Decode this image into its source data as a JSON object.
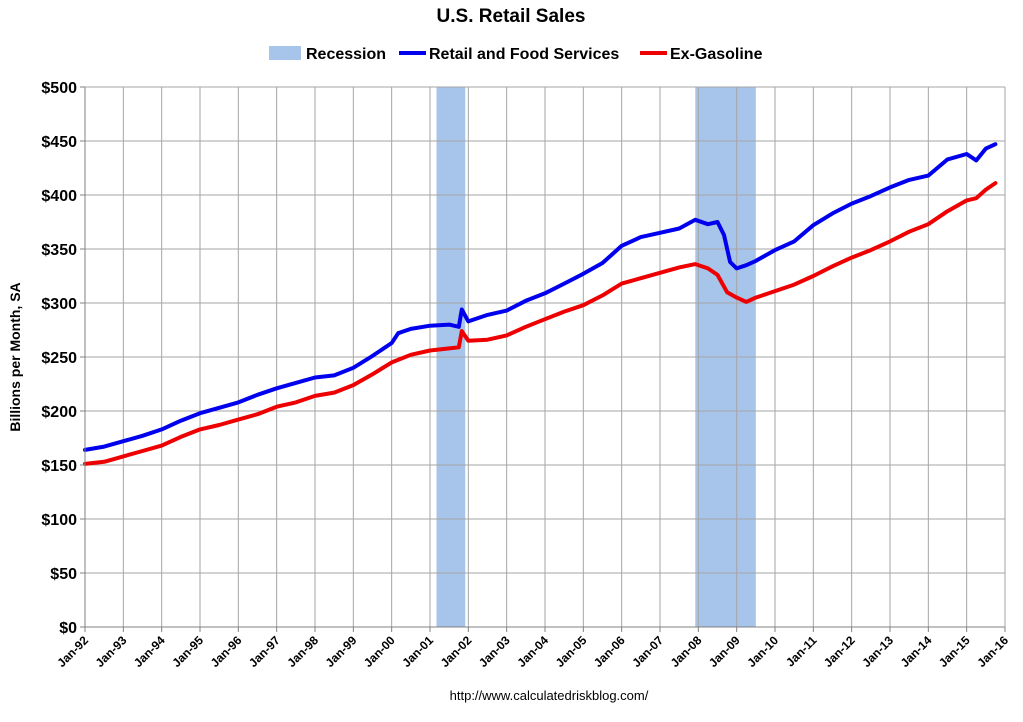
{
  "chart_data": {
    "type": "line",
    "title": "U.S. Retail Sales",
    "ylabel": "Billions per Month, SA",
    "xlabel": "",
    "source": "http://www.calculatedriskblog.com/",
    "ylim": [
      0,
      500
    ],
    "xlim": [
      1992.0,
      2016.0
    ],
    "y_ticks": [
      0,
      50,
      100,
      150,
      200,
      250,
      300,
      350,
      400,
      450,
      500
    ],
    "y_tick_labels": [
      "$0",
      "$50",
      "$100",
      "$150",
      "$200",
      "$250",
      "$300",
      "$350",
      "$400",
      "$450",
      "$500"
    ],
    "x_ticks": [
      1992,
      1993,
      1994,
      1995,
      1996,
      1997,
      1998,
      1999,
      2000,
      2001,
      2002,
      2003,
      2004,
      2005,
      2006,
      2007,
      2008,
      2009,
      2010,
      2011,
      2012,
      2013,
      2014,
      2015,
      2016
    ],
    "x_tick_labels": [
      "Jan-92",
      "Jan-93",
      "Jan-94",
      "Jan-95",
      "Jan-96",
      "Jan-97",
      "Jan-98",
      "Jan-99",
      "Jan-00",
      "Jan-01",
      "Jan-02",
      "Jan-03",
      "Jan-04",
      "Jan-05",
      "Jan-06",
      "Jan-07",
      "Jan-08",
      "Jan-09",
      "Jan-10",
      "Jan-11",
      "Jan-12",
      "Jan-13",
      "Jan-14",
      "Jan-15",
      "Jan-16"
    ],
    "grid": true,
    "legend_position": "top",
    "legend": [
      {
        "label": "Recession",
        "kind": "band",
        "color": "#a7c4ea"
      },
      {
        "label": "Retail and Food Services",
        "kind": "line",
        "color": "#0000ee"
      },
      {
        "label": "Ex-Gasoline",
        "kind": "line",
        "color": "#ee0000"
      }
    ],
    "recessions": [
      {
        "start": 2001.17,
        "end": 2001.92
      },
      {
        "start": 2007.92,
        "end": 2009.5
      }
    ],
    "series": [
      {
        "name": "Retail and Food Services",
        "color": "#0000ee",
        "x": [
          1992.0,
          1992.5,
          1993.0,
          1993.5,
          1994.0,
          1994.5,
          1995.0,
          1995.5,
          1996.0,
          1996.5,
          1997.0,
          1997.5,
          1998.0,
          1998.5,
          1999.0,
          1999.5,
          2000.0,
          2000.17,
          2000.5,
          2001.0,
          2001.5,
          2001.75,
          2001.83,
          2002.0,
          2002.5,
          2003.0,
          2003.5,
          2004.0,
          2004.5,
          2005.0,
          2005.5,
          2006.0,
          2006.5,
          2007.0,
          2007.5,
          2007.92,
          2008.25,
          2008.5,
          2008.67,
          2008.83,
          2009.0,
          2009.25,
          2009.5,
          2009.75,
          2010.0,
          2010.5,
          2011.0,
          2011.5,
          2012.0,
          2012.5,
          2013.0,
          2013.5,
          2014.0,
          2014.5,
          2015.0,
          2015.25,
          2015.5,
          2015.75
        ],
        "values": [
          164,
          167,
          172,
          177,
          183,
          191,
          198,
          203,
          208,
          215,
          221,
          226,
          231,
          233,
          240,
          251,
          263,
          272,
          276,
          279,
          280,
          278,
          294,
          283,
          289,
          293,
          302,
          309,
          318,
          327,
          337,
          353,
          361,
          365,
          369,
          377,
          373,
          375,
          363,
          338,
          332,
          335,
          339,
          344,
          349,
          357,
          372,
          383,
          392,
          399,
          407,
          414,
          418,
          433,
          438,
          432,
          443,
          447
        ]
      },
      {
        "name": "Ex-Gasoline",
        "color": "#ee0000",
        "x": [
          1992.0,
          1992.5,
          1993.0,
          1993.5,
          1994.0,
          1994.5,
          1995.0,
          1995.5,
          1996.0,
          1996.5,
          1997.0,
          1997.5,
          1998.0,
          1998.5,
          1999.0,
          1999.5,
          2000.0,
          2000.5,
          2001.0,
          2001.5,
          2001.75,
          2001.83,
          2002.0,
          2002.5,
          2003.0,
          2003.5,
          2004.0,
          2004.5,
          2005.0,
          2005.5,
          2006.0,
          2006.5,
          2007.0,
          2007.5,
          2007.92,
          2008.25,
          2008.5,
          2008.75,
          2009.0,
          2009.25,
          2009.5,
          2009.75,
          2010.0,
          2010.5,
          2011.0,
          2011.5,
          2012.0,
          2012.5,
          2013.0,
          2013.5,
          2014.0,
          2014.5,
          2015.0,
          2015.25,
          2015.5,
          2015.75
        ],
        "values": [
          151,
          153,
          158,
          163,
          168,
          176,
          183,
          187,
          192,
          197,
          204,
          208,
          214,
          217,
          224,
          234,
          245,
          252,
          256,
          258,
          259,
          274,
          265,
          266,
          270,
          278,
          285,
          292,
          298,
          307,
          318,
          323,
          328,
          333,
          336,
          332,
          326,
          310,
          305,
          301,
          305,
          308,
          311,
          317,
          325,
          334,
          342,
          349,
          357,
          366,
          373,
          385,
          395,
          397,
          405,
          411
        ]
      }
    ]
  }
}
